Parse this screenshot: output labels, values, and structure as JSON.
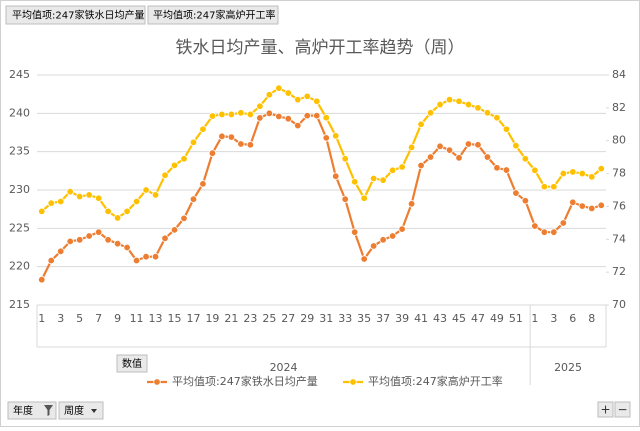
{
  "chart_data": {
    "type": "line",
    "title": "铁水日均产量、高炉开工率趋势（周）",
    "categories": [
      "1",
      null,
      "3",
      null,
      "5",
      null,
      "7",
      null,
      "9",
      null,
      "11",
      null,
      "13",
      null,
      "15",
      null,
      "17",
      null,
      "19",
      null,
      "21",
      null,
      "23",
      null,
      "25",
      null,
      "27",
      null,
      "29",
      null,
      "31",
      null,
      "33",
      null,
      "35",
      null,
      "37",
      null,
      "39",
      null,
      "41",
      null,
      "43",
      null,
      "45",
      null,
      "47",
      null,
      "49",
      null,
      "51",
      null,
      "1",
      null,
      "3",
      null,
      "6",
      null,
      "8",
      null
    ],
    "years": [
      "2024",
      "2024",
      "2024",
      "2024",
      "2024",
      "2024",
      "2024",
      "2024",
      "2024",
      "2024",
      "2024",
      "2024",
      "2024",
      "2024",
      "2024",
      "2024",
      "2024",
      "2024",
      "2024",
      "2024",
      "2024",
      "2024",
      "2024",
      "2024",
      "2024",
      "2024",
      "2024",
      "2024",
      "2024",
      "2024",
      "2024",
      "2024",
      "2024",
      "2024",
      "2024",
      "2024",
      "2024",
      "2024",
      "2024",
      "2024",
      "2024",
      "2024",
      "2024",
      "2024",
      "2024",
      "2024",
      "2024",
      "2024",
      "2024",
      "2024",
      "2024",
      "2024",
      "2025",
      "2025",
      "2025",
      "2025",
      "2025",
      "2025",
      "2025",
      "2025"
    ],
    "series": [
      {
        "name": "平均值项:247家铁水日均产量",
        "color": "#ed7d31",
        "axis": "y",
        "values": [
          218.3,
          220.8,
          222,
          223.3,
          223.5,
          224,
          224.5,
          223.5,
          223,
          222.5,
          220.8,
          221.3,
          221.3,
          223.7,
          224.8,
          226.3,
          228.8,
          230.8,
          234.8,
          237,
          236.9,
          236,
          235.9,
          239.4,
          240,
          239.6,
          239.3,
          238.4,
          239.7,
          239.7,
          236.8,
          231.8,
          228.8,
          224.5,
          221,
          222.7,
          223.5,
          224,
          224.9,
          228.2,
          233.2,
          234.3,
          235.7,
          235.2,
          234.2,
          236,
          235.9,
          234.3,
          232.9,
          232.6,
          229.6,
          228.6,
          225.3,
          224.5,
          224.5,
          225.7,
          228.4,
          227.9,
          227.6,
          228
        ]
      },
      {
        "name": "平均值项:247家高炉开工率",
        "color": "#ffc000",
        "axis": "y2",
        "values": [
          75.7,
          76.2,
          76.3,
          76.9,
          76.6,
          76.7,
          76.5,
          75.7,
          75.3,
          75.7,
          76.3,
          77,
          76.7,
          77.9,
          78.5,
          78.9,
          79.9,
          80.7,
          81.5,
          81.6,
          81.6,
          81.7,
          81.6,
          82.1,
          82.8,
          83.2,
          82.9,
          82.5,
          82.7,
          82.4,
          81.4,
          80.3,
          78.9,
          77.5,
          76.5,
          77.7,
          77.6,
          78.2,
          78.4,
          79.6,
          81,
          81.7,
          82.2,
          82.5,
          82.4,
          82.2,
          82,
          81.7,
          81.4,
          80.7,
          79.7,
          78.9,
          78.2,
          77.2,
          77.2,
          78,
          78.1,
          78,
          77.8,
          78.3
        ]
      }
    ],
    "ylim": [
      215,
      245
    ],
    "yticks": [
      215,
      220,
      225,
      230,
      235,
      240,
      245
    ],
    "y2lim": [
      70,
      84
    ],
    "y2ticks": [
      70,
      72,
      74,
      76,
      78,
      80,
      82,
      84
    ],
    "grid": true,
    "legend": "bottom"
  },
  "ui": {
    "field_buttons": [
      "平均值项:247家铁水日均产量",
      "平均值项:247家高炉开工率"
    ],
    "value_button": "数值",
    "axis_fields": [
      "年度",
      "周度"
    ],
    "zoom": [
      "+",
      "−"
    ]
  }
}
